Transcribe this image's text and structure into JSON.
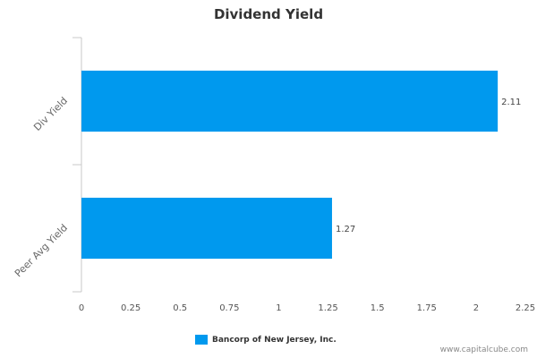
{
  "chart_data": {
    "type": "bar",
    "orientation": "horizontal",
    "title": "Dividend Yield",
    "categories": [
      "Div Yield",
      "Peer Avg Yield"
    ],
    "series": [
      {
        "name": "Bancorp of New Jersey, Inc.",
        "values": [
          2.11,
          1.27
        ],
        "color": "#0099ee"
      }
    ],
    "data_labels": [
      "2.11",
      "1.27"
    ],
    "xlim": [
      0,
      2.25
    ],
    "xticks": [
      "0",
      "0.25",
      "0.5",
      "0.75",
      "1",
      "1.25",
      "1.5",
      "1.75",
      "2",
      "2.25"
    ],
    "grid": false,
    "legend_position": "bottom"
  },
  "footer": {
    "source": "www.capitalcube.com"
  }
}
